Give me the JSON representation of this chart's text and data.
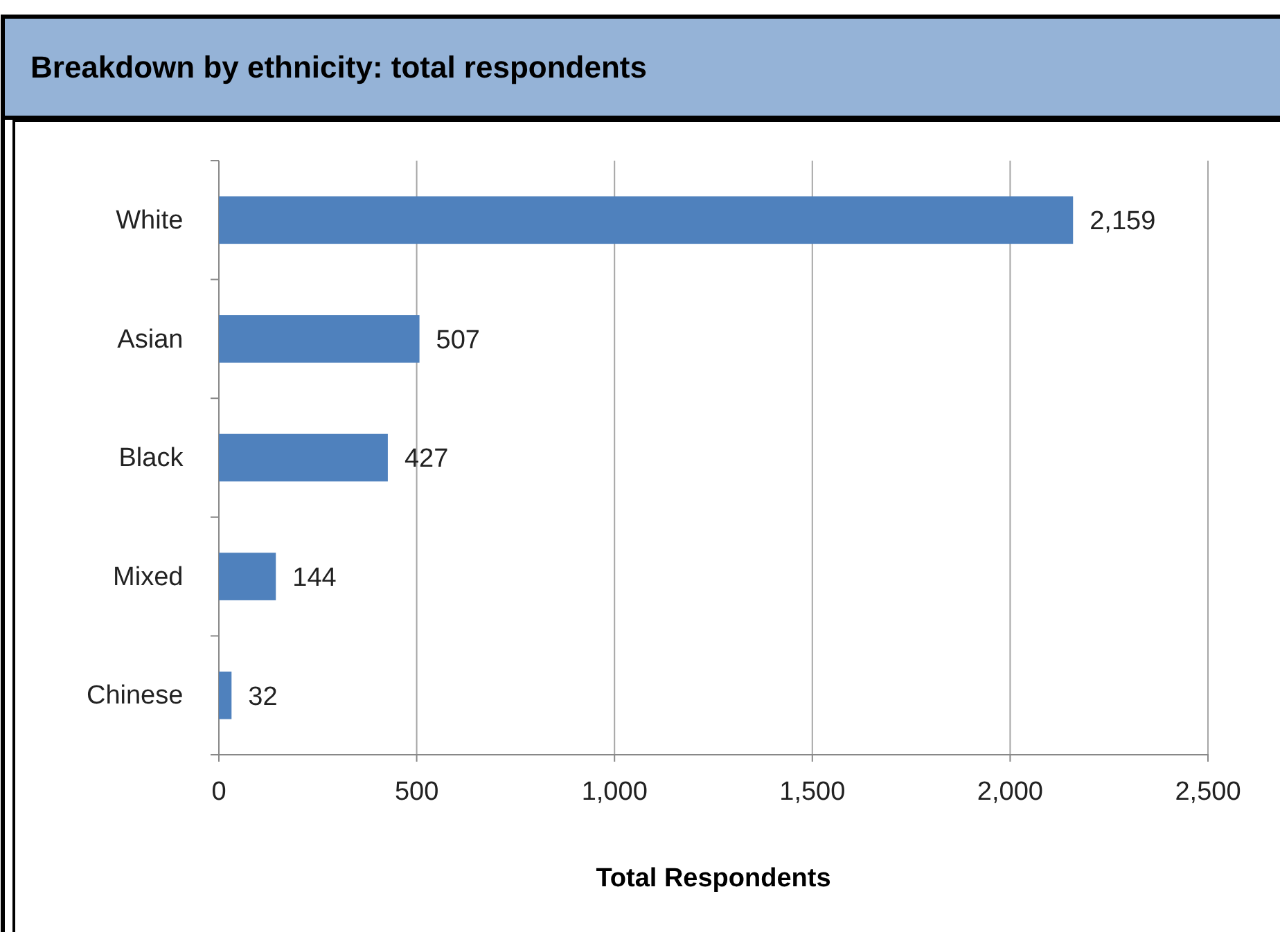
{
  "chart_data": {
    "type": "bar",
    "orientation": "horizontal",
    "title": "Breakdown by ethnicity: total respondents",
    "xlabel": "Total Respondents",
    "categories": [
      "White",
      "Asian",
      "Black",
      "Mixed",
      "Chinese"
    ],
    "values": [
      2159,
      507,
      427,
      144,
      32
    ],
    "color": "#4f81bd",
    "value_labels": [
      "2,159",
      "507",
      "427",
      "144",
      "32"
    ],
    "xlim": [
      0,
      2500
    ],
    "xticks": [
      {
        "value": 0,
        "label": "0"
      },
      {
        "value": 500,
        "label": "500"
      },
      {
        "value": 1000,
        "label": "1,000"
      },
      {
        "value": 1500,
        "label": "1,500"
      },
      {
        "value": 2000,
        "label": "2,000"
      },
      {
        "value": 2500,
        "label": "2,500"
      }
    ],
    "grid": "x"
  }
}
